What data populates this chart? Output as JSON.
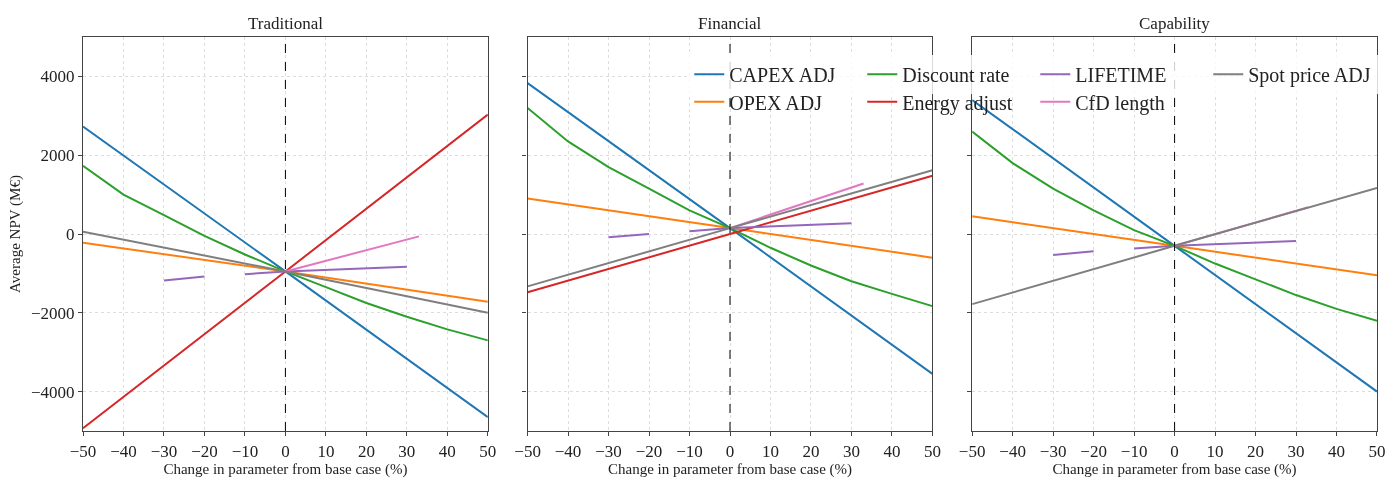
{
  "chart_data": [
    {
      "type": "line",
      "title": "Traditional",
      "xlabel": "Change in parameter from base case (%)",
      "ylabel": "Average NPV (M€)",
      "xlim": [
        -50,
        50
      ],
      "xticks": [
        -50,
        -40,
        -30,
        -20,
        -10,
        0,
        10,
        20,
        30,
        40,
        50
      ],
      "ylim": [
        -5000,
        5000
      ],
      "yticks": [
        -4000,
        -2000,
        0,
        2000,
        4000
      ],
      "grid": true,
      "marker": "none",
      "line_style": "solid",
      "legend": "top right",
      "ref_lines": [
        {
          "axis": "x",
          "value": 0,
          "color": "#000000",
          "line_style": "dashed"
        }
      ],
      "series": [
        {
          "name": "CAPEX ADJ",
          "color": "#1f77b4",
          "x": [
            -50,
            0,
            50
          ],
          "values": [
            2730,
            -950,
            -4650
          ]
        },
        {
          "name": "OPEX ADJ",
          "color": "#ff7f0e",
          "x": [
            -50,
            0,
            50
          ],
          "values": [
            -220,
            -950,
            -1720
          ]
        },
        {
          "name": "Discount rate",
          "color": "#2ca02c",
          "x": [
            -50,
            -40,
            -30,
            -20,
            -10,
            0,
            10,
            20,
            30,
            40,
            50
          ],
          "values": [
            1730,
            1000,
            480,
            -50,
            -520,
            -950,
            -1350,
            -1750,
            -2100,
            -2420,
            -2700
          ]
        },
        {
          "name": "Energy adjust",
          "color": "#d62728",
          "x": [
            -50,
            0,
            50
          ],
          "values": [
            -4930,
            -950,
            3030
          ]
        },
        {
          "name": "LIFETIME",
          "color": "#9467bd",
          "x": [
            -30,
            -20,
            -15,
            -10,
            0,
            30
          ],
          "values": [
            -1180,
            -1080,
            null,
            -1020,
            -950,
            -830
          ]
        },
        {
          "name": "CfD length",
          "color": "#e377c2",
          "x": [
            0,
            33
          ],
          "values": [
            -950,
            -60
          ]
        },
        {
          "name": "Spot price ADJ",
          "color": "#7f7f7f",
          "x": [
            -50,
            0,
            50
          ],
          "values": [
            60,
            -950,
            -2000
          ]
        }
      ]
    },
    {
      "type": "line",
      "title": "Financial",
      "xlabel": "Change in parameter from base case (%)",
      "xlim": [
        -50,
        50
      ],
      "xticks": [
        -50,
        -40,
        -30,
        -20,
        -10,
        0,
        10,
        20,
        30,
        40,
        50
      ],
      "ylim": [
        -5000,
        5000
      ],
      "yticks": [
        -4000,
        -2000,
        0,
        2000,
        4000
      ],
      "tick_labels": "x",
      "grid": true,
      "marker": "none",
      "line_style": "solid",
      "ref_lines": [
        {
          "axis": "x",
          "value": 0,
          "color": "#000000",
          "line_style": "dashed"
        }
      ],
      "series": [
        {
          "color": "#1f77b4",
          "x": [
            -50,
            0,
            50
          ],
          "values": [
            3830,
            150,
            -3550
          ]
        },
        {
          "color": "#ff7f0e",
          "x": [
            -50,
            0,
            50
          ],
          "values": [
            900,
            150,
            -600
          ]
        },
        {
          "color": "#2ca02c",
          "x": [
            -50,
            -40,
            -30,
            -20,
            -10,
            0,
            10,
            20,
            30,
            40,
            50
          ],
          "values": [
            3200,
            2350,
            1700,
            1150,
            600,
            150,
            -350,
            -800,
            -1200,
            -1520,
            -1830
          ]
        },
        {
          "color": "#d62728",
          "x": [
            -50,
            0,
            50
          ],
          "values": [
            -1480,
            0,
            1480
          ]
        },
        {
          "color": "#9467bd",
          "x": [
            -30,
            -20,
            -15,
            -10,
            0,
            30
          ],
          "values": [
            -80,
            0,
            null,
            70,
            150,
            270
          ]
        },
        {
          "color": "#e377c2",
          "x": [
            0,
            33
          ],
          "values": [
            150,
            1280
          ]
        },
        {
          "color": "#7f7f7f",
          "x": [
            -50,
            0,
            50
          ],
          "values": [
            -1330,
            150,
            1620
          ]
        }
      ]
    },
    {
      "type": "line",
      "title": "Capability",
      "xlabel": "Change in parameter from base case (%)",
      "xlim": [
        -50,
        50
      ],
      "xticks": [
        -50,
        -40,
        -30,
        -20,
        -10,
        0,
        10,
        20,
        30,
        40,
        50
      ],
      "ylim": [
        -5000,
        5000
      ],
      "yticks": [
        -4000,
        -2000,
        0,
        2000,
        4000
      ],
      "tick_labels": "x",
      "grid": true,
      "marker": "none",
      "line_style": "solid",
      "ref_lines": [
        {
          "axis": "x",
          "value": 0,
          "color": "#000000",
          "line_style": "dashed"
        }
      ],
      "series": [
        {
          "color": "#1f77b4",
          "x": [
            -50,
            0,
            50
          ],
          "values": [
            3400,
            -300,
            -4000
          ]
        },
        {
          "color": "#ff7f0e",
          "x": [
            -50,
            0,
            50
          ],
          "values": [
            450,
            -300,
            -1050
          ]
        },
        {
          "color": "#2ca02c",
          "x": [
            -50,
            -40,
            -30,
            -20,
            -10,
            0,
            10,
            20,
            30,
            40,
            50
          ],
          "values": [
            2600,
            1800,
            1150,
            600,
            100,
            -300,
            -750,
            -1150,
            -1550,
            -1900,
            -2200
          ]
        },
        {
          "color": "#9467bd",
          "x": [
            -30,
            -20,
            -15,
            -10,
            0,
            30
          ],
          "values": [
            -530,
            -440,
            null,
            -370,
            -300,
            -180
          ]
        },
        {
          "color": "#e377c2",
          "x": [
            0,
            33
          ],
          "values": [
            -300,
            680
          ]
        },
        {
          "color": "#7f7f7f",
          "x": [
            -50,
            0,
            50
          ],
          "values": [
            -1780,
            -300,
            1170
          ]
        }
      ]
    }
  ]
}
